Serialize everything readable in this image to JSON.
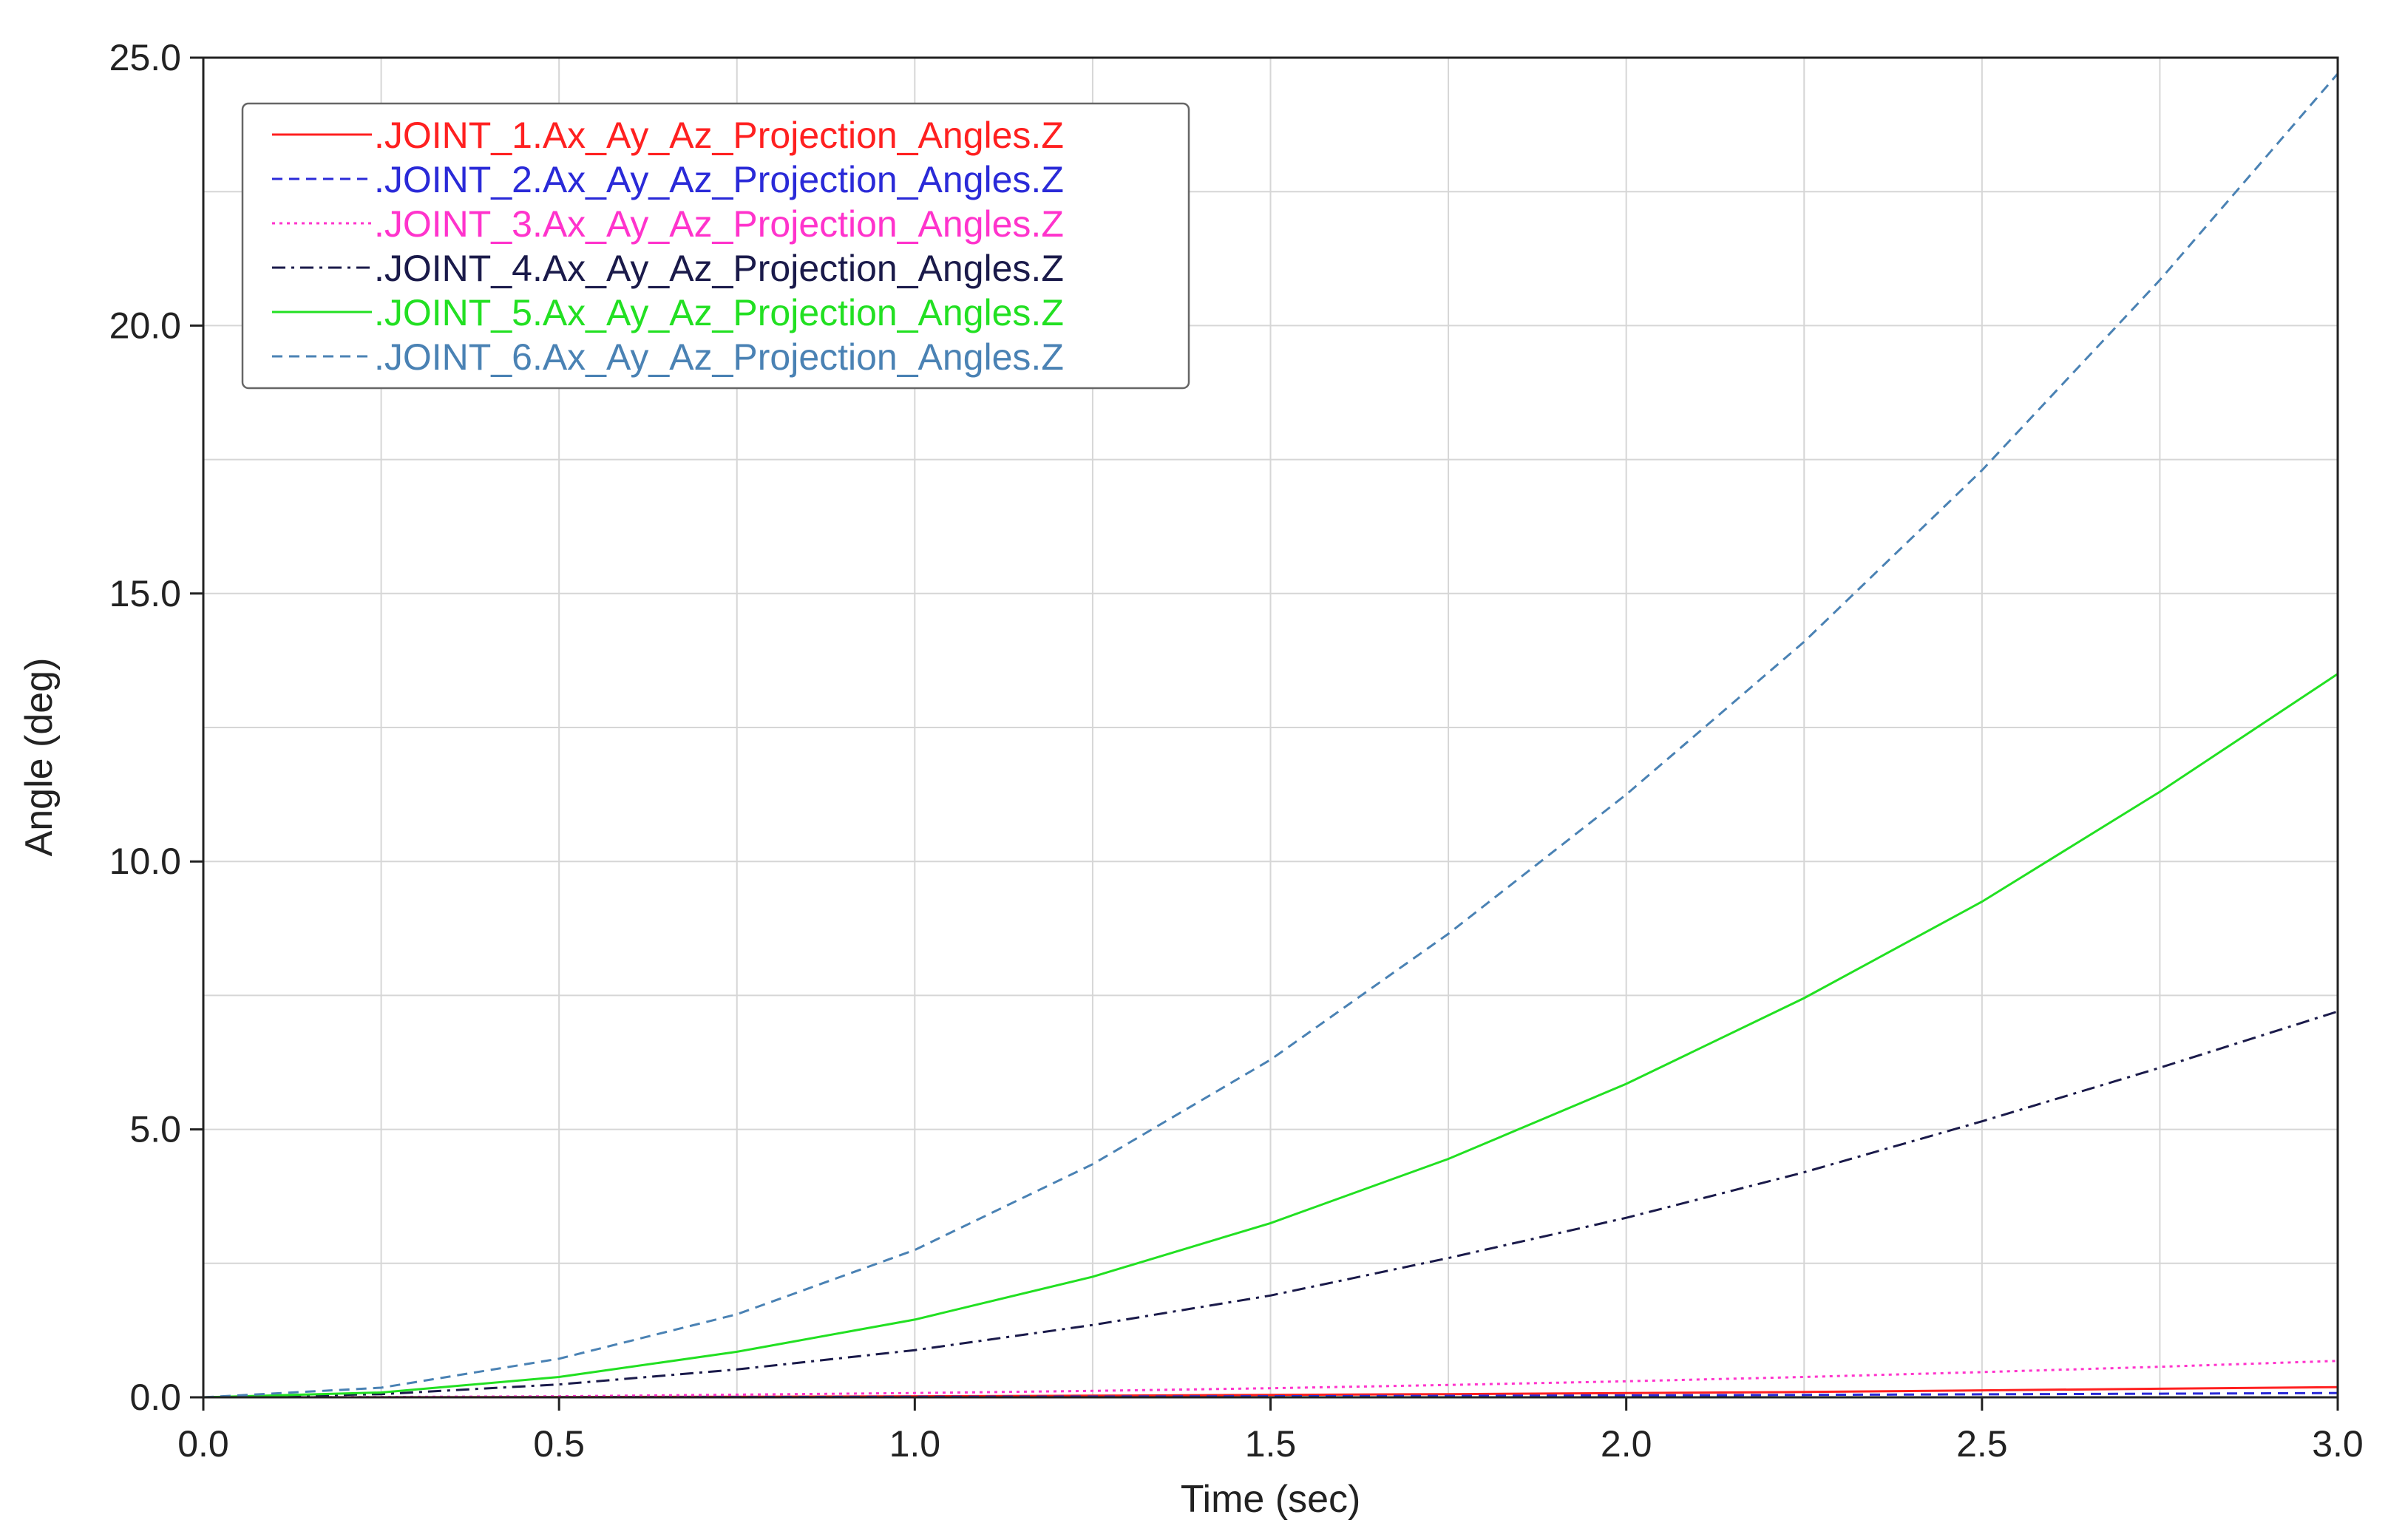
{
  "chart_data": {
    "type": "line",
    "title": "",
    "xlabel": "Time (sec)",
    "ylabel": "Angle (deg)",
    "xlim": [
      0.0,
      3.0
    ],
    "ylim": [
      0.0,
      25.0
    ],
    "x_ticks": [
      "0.0",
      "0.5",
      "1.0",
      "1.5",
      "2.0",
      "2.5",
      "3.0"
    ],
    "y_ticks": [
      "0.0",
      "5.0",
      "10.0",
      "15.0",
      "20.0",
      "25.0"
    ],
    "grid": true,
    "legend_position": "top-left",
    "x": [
      0.0,
      0.25,
      0.5,
      0.75,
      1.0,
      1.25,
      1.5,
      1.75,
      2.0,
      2.25,
      2.5,
      2.75,
      3.0
    ],
    "series": [
      {
        "name": ".JOINT_1.Ax_Ay_Az_Projection_Angles.Z",
        "color": "#ff2020",
        "dash": "solid",
        "values": [
          0.0,
          0.001,
          0.005,
          0.01,
          0.02,
          0.03,
          0.045,
          0.06,
          0.08,
          0.1,
          0.13,
          0.16,
          0.19
        ]
      },
      {
        "name": ".JOINT_2.Ax_Ay_Az_Projection_Angles.Z",
        "color": "#2a2ad8",
        "dash": "dashed",
        "values": [
          0.0,
          0.0005,
          0.002,
          0.005,
          0.009,
          0.014,
          0.02,
          0.028,
          0.036,
          0.045,
          0.056,
          0.068,
          0.08
        ]
      },
      {
        "name": ".JOINT_3.Ax_Ay_Az_Projection_Angles.Z",
        "color": "#ff33cc",
        "dash": "dotted",
        "values": [
          0.0,
          0.005,
          0.02,
          0.05,
          0.08,
          0.12,
          0.17,
          0.23,
          0.3,
          0.38,
          0.47,
          0.57,
          0.68
        ]
      },
      {
        "name": ".JOINT_4.Ax_Ay_Az_Projection_Angles.Z",
        "color": "#1a1a4a",
        "dash": "dashdot",
        "values": [
          0.0,
          0.06,
          0.24,
          0.52,
          0.88,
          1.35,
          1.9,
          2.6,
          3.35,
          4.2,
          5.15,
          6.15,
          7.2
        ]
      },
      {
        "name": ".JOINT_5.Ax_Ay_Az_Projection_Angles.Z",
        "color": "#22e022",
        "dash": "solid",
        "values": [
          0.0,
          0.09,
          0.38,
          0.85,
          1.45,
          2.25,
          3.25,
          4.45,
          5.85,
          7.45,
          9.25,
          11.3,
          13.5
        ]
      },
      {
        "name": ".JOINT_6.Ax_Ay_Az_Projection_Angles.Z",
        "color": "#4a82b4",
        "dash": "dashed",
        "values": [
          0.0,
          0.18,
          0.72,
          1.55,
          2.75,
          4.35,
          6.3,
          8.65,
          11.25,
          14.1,
          17.3,
          20.85,
          24.7
        ]
      }
    ]
  }
}
